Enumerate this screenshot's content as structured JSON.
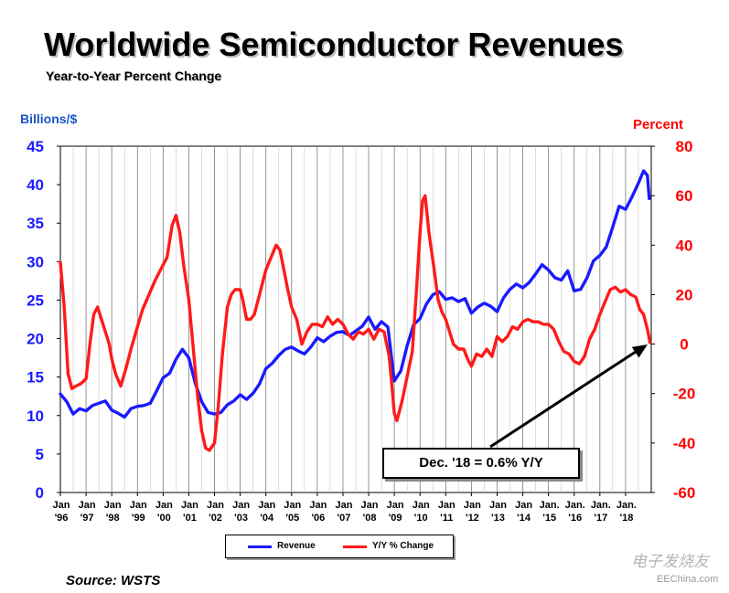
{
  "title": "Worldwide Semiconductor Revenues",
  "subtitle": "Year-to-Year Percent Change",
  "left_axis_label": "Billions/$",
  "right_axis_label": "Percent",
  "source": "Source: WSTS",
  "callout": "Dec. '18 = 0.6% Y/Y",
  "watermark": "电子发烧友",
  "watermark_site": "EEChina.com",
  "legend": {
    "revenue": "Revenue",
    "yoy": "Y/Y % Change"
  },
  "colors": {
    "revenue": "#1a1aff",
    "yoy": "#ff1a1a",
    "left_axis": "#1a1aff",
    "right_axis": "#ff0000"
  },
  "chart_data": {
    "type": "line",
    "title": "Worldwide Semiconductor Revenues",
    "subtitle": "Year-to-Year Percent Change",
    "x_tick_labels": [
      {
        "top": "Jan",
        "bottom": "'96"
      },
      {
        "top": "Jan",
        "bottom": "'97"
      },
      {
        "top": "Jan",
        "bottom": "'98"
      },
      {
        "top": "Jan",
        "bottom": "'99"
      },
      {
        "top": "Jan",
        "bottom": "'00"
      },
      {
        "top": "Jan",
        "bottom": "'01"
      },
      {
        "top": "Jan",
        "bottom": "'02"
      },
      {
        "top": "Jan",
        "bottom": "'03"
      },
      {
        "top": "Jan",
        "bottom": "'04"
      },
      {
        "top": "Jan",
        "bottom": "'05"
      },
      {
        "top": "Jan",
        "bottom": "'06"
      },
      {
        "top": "Jan",
        "bottom": "'07"
      },
      {
        "top": "Jan",
        "bottom": "'08"
      },
      {
        "top": "Jan",
        "bottom": "'09"
      },
      {
        "top": "Jan",
        "bottom": "'10"
      },
      {
        "top": "Jan",
        "bottom": "'11"
      },
      {
        "top": "Jan",
        "bottom": "'12"
      },
      {
        "top": "Jan",
        "bottom": "'13"
      },
      {
        "top": "Jan",
        "bottom": "'14"
      },
      {
        "top": "Jan.",
        "bottom": "'15"
      },
      {
        "top": "Jan.",
        "bottom": "'16"
      },
      {
        "top": "Jan.",
        "bottom": "'17"
      },
      {
        "top": "Jan.",
        "bottom": "'18"
      }
    ],
    "x_range": [
      1996,
      2019
    ],
    "y_left": {
      "label": "Billions/$",
      "range": [
        0,
        45
      ],
      "ticks": [
        0,
        5,
        10,
        15,
        20,
        25,
        30,
        35,
        40,
        45
      ]
    },
    "y_right": {
      "label": "Percent",
      "range": [
        -60,
        80
      ],
      "ticks": [
        -60,
        -40,
        -20,
        0,
        20,
        40,
        60,
        80
      ]
    },
    "grid": "vertical",
    "series": [
      {
        "name": "Revenue",
        "axis": "left",
        "points": [
          [
            1996.0,
            12.8
          ],
          [
            1996.25,
            11.8
          ],
          [
            1996.5,
            10.2
          ],
          [
            1996.75,
            10.9
          ],
          [
            1997.0,
            10.6
          ],
          [
            1997.25,
            11.3
          ],
          [
            1997.5,
            11.6
          ],
          [
            1997.75,
            11.9
          ],
          [
            1998.0,
            10.7
          ],
          [
            1998.25,
            10.3
          ],
          [
            1998.5,
            9.8
          ],
          [
            1998.75,
            10.9
          ],
          [
            1999.0,
            11.2
          ],
          [
            1999.25,
            11.3
          ],
          [
            1999.5,
            11.6
          ],
          [
            1999.75,
            13.2
          ],
          [
            2000.0,
            14.9
          ],
          [
            2000.25,
            15.5
          ],
          [
            2000.5,
            17.3
          ],
          [
            2000.75,
            18.6
          ],
          [
            2001.0,
            17.5
          ],
          [
            2001.25,
            14.2
          ],
          [
            2001.5,
            11.8
          ],
          [
            2001.75,
            10.4
          ],
          [
            2002.0,
            10.2
          ],
          [
            2002.25,
            10.4
          ],
          [
            2002.5,
            11.4
          ],
          [
            2002.75,
            11.9
          ],
          [
            2003.0,
            12.7
          ],
          [
            2003.25,
            12.1
          ],
          [
            2003.5,
            12.9
          ],
          [
            2003.75,
            14.1
          ],
          [
            2004.0,
            16.1
          ],
          [
            2004.25,
            16.8
          ],
          [
            2004.5,
            17.8
          ],
          [
            2004.75,
            18.6
          ],
          [
            2005.0,
            18.9
          ],
          [
            2005.25,
            18.4
          ],
          [
            2005.5,
            18.0
          ],
          [
            2005.75,
            18.9
          ],
          [
            2006.0,
            20.1
          ],
          [
            2006.25,
            19.6
          ],
          [
            2006.5,
            20.3
          ],
          [
            2006.75,
            20.8
          ],
          [
            2007.0,
            20.9
          ],
          [
            2007.25,
            20.4
          ],
          [
            2007.5,
            21.0
          ],
          [
            2007.75,
            21.6
          ],
          [
            2008.0,
            22.8
          ],
          [
            2008.25,
            21.2
          ],
          [
            2008.5,
            22.2
          ],
          [
            2008.75,
            21.5
          ],
          [
            2009.0,
            14.5
          ],
          [
            2009.25,
            15.8
          ],
          [
            2009.5,
            19.1
          ],
          [
            2009.75,
            21.8
          ],
          [
            2010.0,
            22.6
          ],
          [
            2010.25,
            24.5
          ],
          [
            2010.5,
            25.7
          ],
          [
            2010.75,
            26.1
          ],
          [
            2011.0,
            25.1
          ],
          [
            2011.25,
            25.3
          ],
          [
            2011.5,
            24.8
          ],
          [
            2011.75,
            25.2
          ],
          [
            2012.0,
            23.3
          ],
          [
            2012.25,
            24.1
          ],
          [
            2012.5,
            24.6
          ],
          [
            2012.75,
            24.2
          ],
          [
            2013.0,
            23.5
          ],
          [
            2013.25,
            25.3
          ],
          [
            2013.5,
            26.4
          ],
          [
            2013.75,
            27.1
          ],
          [
            2014.0,
            26.6
          ],
          [
            2014.25,
            27.3
          ],
          [
            2014.5,
            28.4
          ],
          [
            2014.75,
            29.6
          ],
          [
            2015.0,
            28.9
          ],
          [
            2015.25,
            27.9
          ],
          [
            2015.5,
            27.6
          ],
          [
            2015.75,
            28.8
          ],
          [
            2016.0,
            26.2
          ],
          [
            2016.25,
            26.4
          ],
          [
            2016.5,
            27.9
          ],
          [
            2016.75,
            30.1
          ],
          [
            2017.0,
            30.8
          ],
          [
            2017.25,
            31.9
          ],
          [
            2017.5,
            34.5
          ],
          [
            2017.75,
            37.2
          ],
          [
            2018.0,
            36.8
          ],
          [
            2018.25,
            38.4
          ],
          [
            2018.5,
            40.2
          ],
          [
            2018.7,
            41.8
          ],
          [
            2018.85,
            41.2
          ],
          [
            2018.92,
            38.2
          ]
        ]
      },
      {
        "name": "Y/Y % Change",
        "axis": "right",
        "points": [
          [
            1996.0,
            33
          ],
          [
            1996.15,
            15
          ],
          [
            1996.3,
            -12
          ],
          [
            1996.45,
            -18
          ],
          [
            1996.6,
            -17
          ],
          [
            1996.8,
            -16
          ],
          [
            1997.0,
            -14
          ],
          [
            1997.15,
            0
          ],
          [
            1997.3,
            12
          ],
          [
            1997.45,
            15
          ],
          [
            1997.6,
            10
          ],
          [
            1997.75,
            5
          ],
          [
            1997.9,
            0
          ],
          [
            1998.0,
            -6
          ],
          [
            1998.15,
            -12
          ],
          [
            1998.35,
            -17
          ],
          [
            1998.55,
            -10
          ],
          [
            1998.75,
            -2
          ],
          [
            1999.0,
            7
          ],
          [
            1999.2,
            14
          ],
          [
            1999.45,
            20
          ],
          [
            1999.7,
            26
          ],
          [
            1999.9,
            30
          ],
          [
            2000.0,
            32
          ],
          [
            2000.15,
            35
          ],
          [
            2000.35,
            48
          ],
          [
            2000.5,
            52
          ],
          [
            2000.65,
            45
          ],
          [
            2000.8,
            32
          ],
          [
            2001.0,
            18
          ],
          [
            2001.2,
            -5
          ],
          [
            2001.35,
            -22
          ],
          [
            2001.5,
            -35
          ],
          [
            2001.65,
            -42
          ],
          [
            2001.8,
            -43
          ],
          [
            2002.0,
            -40
          ],
          [
            2002.15,
            -25
          ],
          [
            2002.3,
            -5
          ],
          [
            2002.5,
            15
          ],
          [
            2002.65,
            20
          ],
          [
            2002.8,
            22
          ],
          [
            2003.0,
            22
          ],
          [
            2003.1,
            18
          ],
          [
            2003.25,
            10
          ],
          [
            2003.4,
            10
          ],
          [
            2003.55,
            12
          ],
          [
            2003.75,
            20
          ],
          [
            2004.0,
            30
          ],
          [
            2004.2,
            35
          ],
          [
            2004.4,
            40
          ],
          [
            2004.55,
            38
          ],
          [
            2004.7,
            30
          ],
          [
            2004.85,
            22
          ],
          [
            2005.0,
            15
          ],
          [
            2005.2,
            10
          ],
          [
            2005.4,
            0
          ],
          [
            2005.6,
            5
          ],
          [
            2005.8,
            8
          ],
          [
            2006.0,
            8
          ],
          [
            2006.2,
            7
          ],
          [
            2006.4,
            11
          ],
          [
            2006.6,
            8
          ],
          [
            2006.8,
            10
          ],
          [
            2007.0,
            8
          ],
          [
            2007.2,
            4
          ],
          [
            2007.4,
            2
          ],
          [
            2007.6,
            5
          ],
          [
            2007.8,
            4
          ],
          [
            2008.0,
            6
          ],
          [
            2008.2,
            2
          ],
          [
            2008.4,
            6
          ],
          [
            2008.6,
            5
          ],
          [
            2008.8,
            -5
          ],
          [
            2008.95,
            -22
          ],
          [
            2009.0,
            -28
          ],
          [
            2009.1,
            -31
          ],
          [
            2009.3,
            -23
          ],
          [
            2009.5,
            -13
          ],
          [
            2009.7,
            -3
          ],
          [
            2009.85,
            20
          ],
          [
            2010.0,
            45
          ],
          [
            2010.1,
            58
          ],
          [
            2010.2,
            60
          ],
          [
            2010.35,
            45
          ],
          [
            2010.55,
            30
          ],
          [
            2010.7,
            18
          ],
          [
            2010.85,
            13
          ],
          [
            2011.0,
            10
          ],
          [
            2011.15,
            5
          ],
          [
            2011.3,
            0
          ],
          [
            2011.5,
            -2
          ],
          [
            2011.7,
            -2
          ],
          [
            2011.85,
            -6
          ],
          [
            2012.0,
            -9
          ],
          [
            2012.2,
            -4
          ],
          [
            2012.4,
            -5
          ],
          [
            2012.6,
            -2
          ],
          [
            2012.8,
            -5
          ],
          [
            2013.0,
            3
          ],
          [
            2013.2,
            1
          ],
          [
            2013.4,
            3
          ],
          [
            2013.6,
            7
          ],
          [
            2013.8,
            6
          ],
          [
            2014.0,
            9
          ],
          [
            2014.2,
            10
          ],
          [
            2014.4,
            9
          ],
          [
            2014.6,
            9
          ],
          [
            2014.8,
            8
          ],
          [
            2015.0,
            8
          ],
          [
            2015.2,
            6
          ],
          [
            2015.4,
            1
          ],
          [
            2015.6,
            -3
          ],
          [
            2015.8,
            -4
          ],
          [
            2016.0,
            -7
          ],
          [
            2016.2,
            -8
          ],
          [
            2016.4,
            -5
          ],
          [
            2016.6,
            2
          ],
          [
            2016.8,
            6
          ],
          [
            2017.0,
            12
          ],
          [
            2017.2,
            17
          ],
          [
            2017.4,
            22
          ],
          [
            2017.6,
            23
          ],
          [
            2017.8,
            21
          ],
          [
            2018.0,
            22
          ],
          [
            2018.2,
            20
          ],
          [
            2018.4,
            19
          ],
          [
            2018.55,
            14
          ],
          [
            2018.7,
            12
          ],
          [
            2018.85,
            6
          ],
          [
            2018.95,
            0.6
          ]
        ]
      }
    ],
    "annotations": [
      {
        "text": "Dec. '18 = 0.6% Y/Y",
        "points_to": [
          2019.0,
          0.6
        ],
        "axis": "right"
      }
    ]
  }
}
